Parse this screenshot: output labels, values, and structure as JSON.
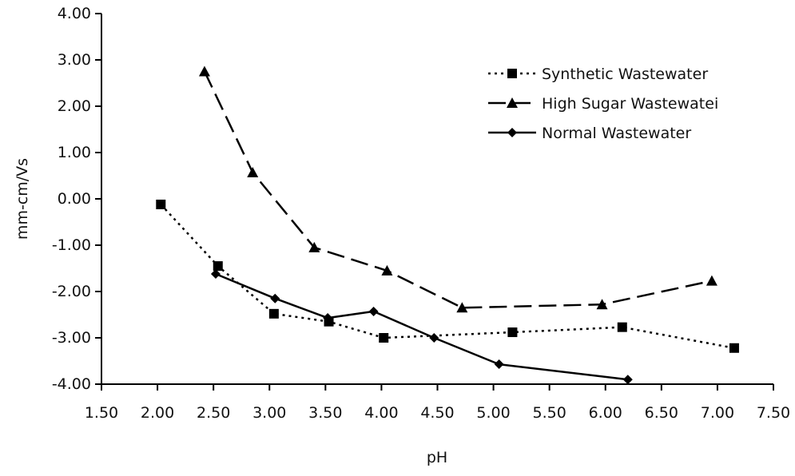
{
  "chart_data": {
    "type": "line",
    "title": "",
    "xlabel": "pH",
    "ylabel": "mm-cm/Vs",
    "xlim": [
      1.5,
      7.5
    ],
    "ylim": [
      -4.0,
      4.0
    ],
    "x_ticks": [
      "1.50",
      "2.00",
      "2.50",
      "3.00",
      "3.50",
      "4.00",
      "4.50",
      "5.00",
      "5.50",
      "6.00",
      "6.50",
      "7.00",
      "7.50"
    ],
    "y_ticks": [
      "4.00",
      "3.00",
      "2.00",
      "1.00",
      "0.00",
      "-1.00",
      "-2.00",
      "-3.00",
      "-4.00"
    ],
    "grid": false,
    "legend_position": "top-right",
    "series": [
      {
        "name": "Synthetic Wastewater",
        "marker": "square",
        "dash": "dotted",
        "color": "#000000",
        "points": [
          [
            2.03,
            -0.12
          ],
          [
            2.54,
            -1.45
          ],
          [
            3.04,
            -2.48
          ],
          [
            3.53,
            -2.65
          ],
          [
            4.02,
            -3.0
          ],
          [
            5.17,
            -2.88
          ],
          [
            6.15,
            -2.77
          ],
          [
            7.15,
            -3.22
          ]
        ]
      },
      {
        "name": "High Sugar Wastewatei",
        "marker": "triangle",
        "dash": "dashed",
        "color": "#000000",
        "points": [
          [
            2.42,
            2.75
          ],
          [
            2.85,
            0.57
          ],
          [
            3.4,
            -1.05
          ],
          [
            4.05,
            -1.55
          ],
          [
            4.72,
            -2.35
          ],
          [
            5.97,
            -2.28
          ],
          [
            6.95,
            -1.77
          ]
        ]
      },
      {
        "name": "Normal Wastewater",
        "marker": "diamond",
        "dash": "solid",
        "color": "#000000",
        "points": [
          [
            2.52,
            -1.62
          ],
          [
            3.05,
            -2.15
          ],
          [
            3.52,
            -2.57
          ],
          [
            3.93,
            -2.43
          ],
          [
            4.47,
            -3.0
          ],
          [
            5.05,
            -3.57
          ],
          [
            6.2,
            -3.9
          ]
        ]
      }
    ]
  }
}
